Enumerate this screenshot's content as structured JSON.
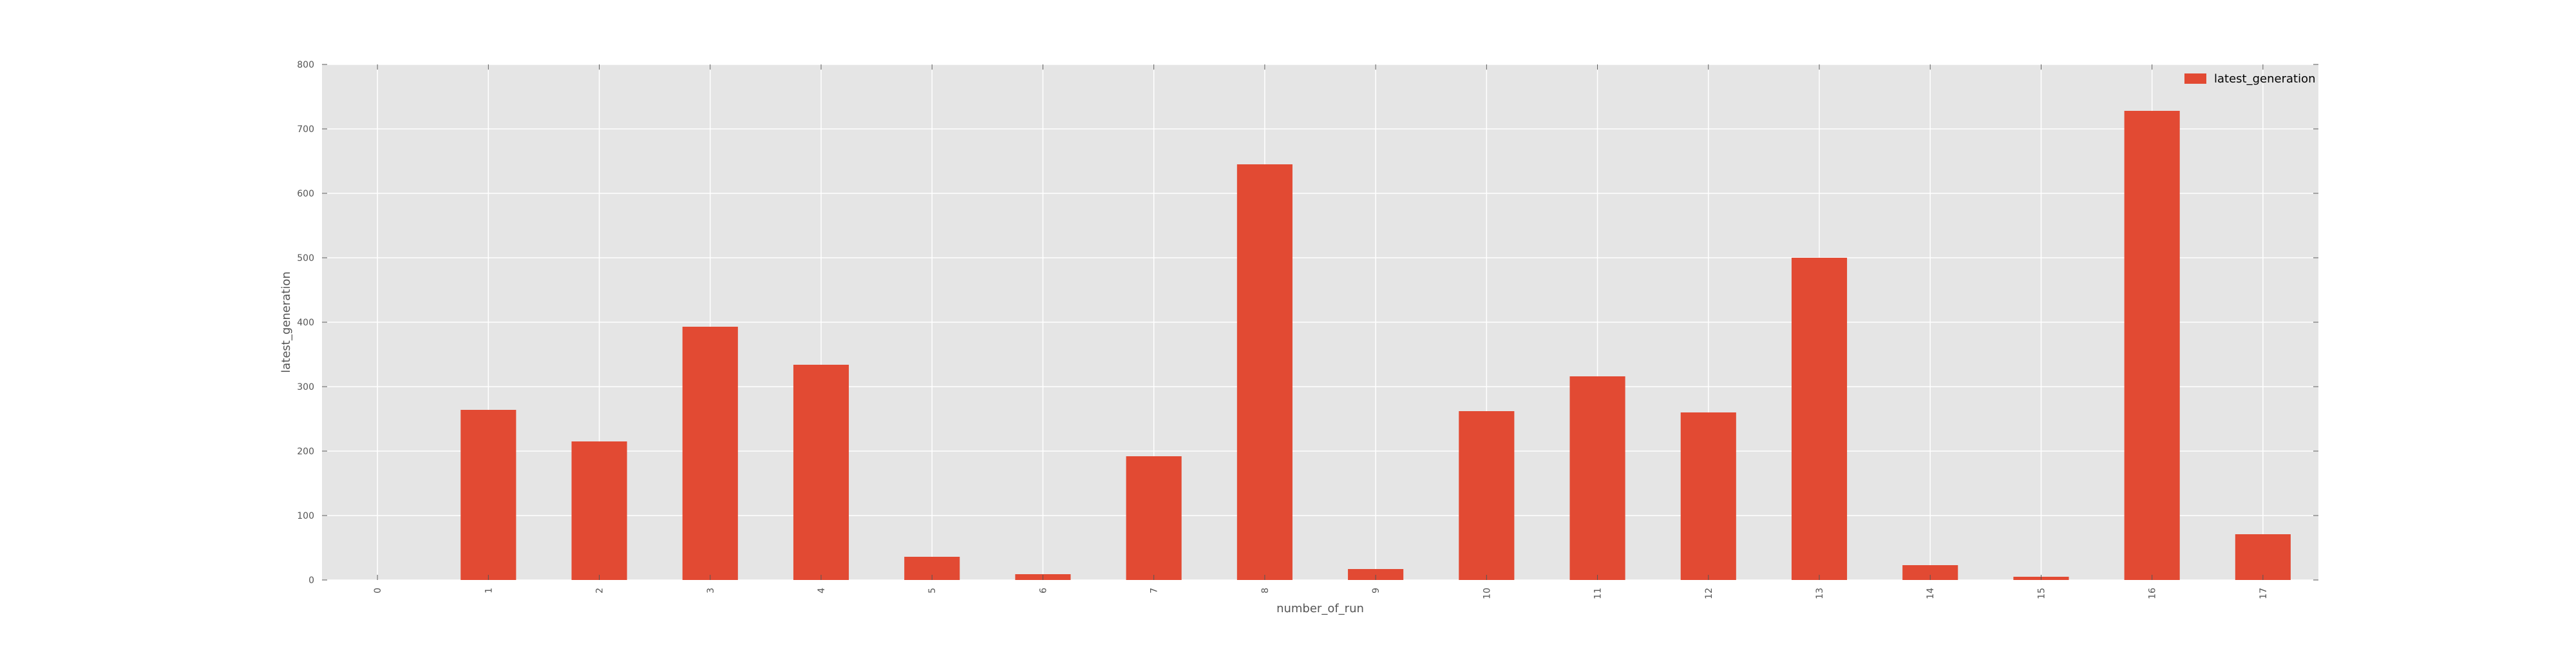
{
  "chart_data": {
    "type": "bar",
    "title": "",
    "xlabel": "number_of_run",
    "ylabel": "latest_generation",
    "categories": [
      "0",
      "1",
      "2",
      "3",
      "4",
      "5",
      "6",
      "7",
      "8",
      "9",
      "10",
      "11",
      "12",
      "13",
      "14",
      "15",
      "16",
      "17"
    ],
    "series": [
      {
        "name": "latest_generation",
        "values": [
          0,
          264,
          215,
          393,
          334,
          36,
          9,
          192,
          645,
          17,
          262,
          316,
          260,
          500,
          23,
          5,
          728,
          71
        ],
        "color": "#E24A33"
      }
    ],
    "ylim": [
      0,
      800
    ],
    "yticks": [
      0,
      100,
      200,
      300,
      400,
      500,
      600,
      700,
      800
    ],
    "grid": true,
    "legend_position": "top-right",
    "background_color": "#E5E5E5",
    "grid_color": "#FFFFFF"
  }
}
